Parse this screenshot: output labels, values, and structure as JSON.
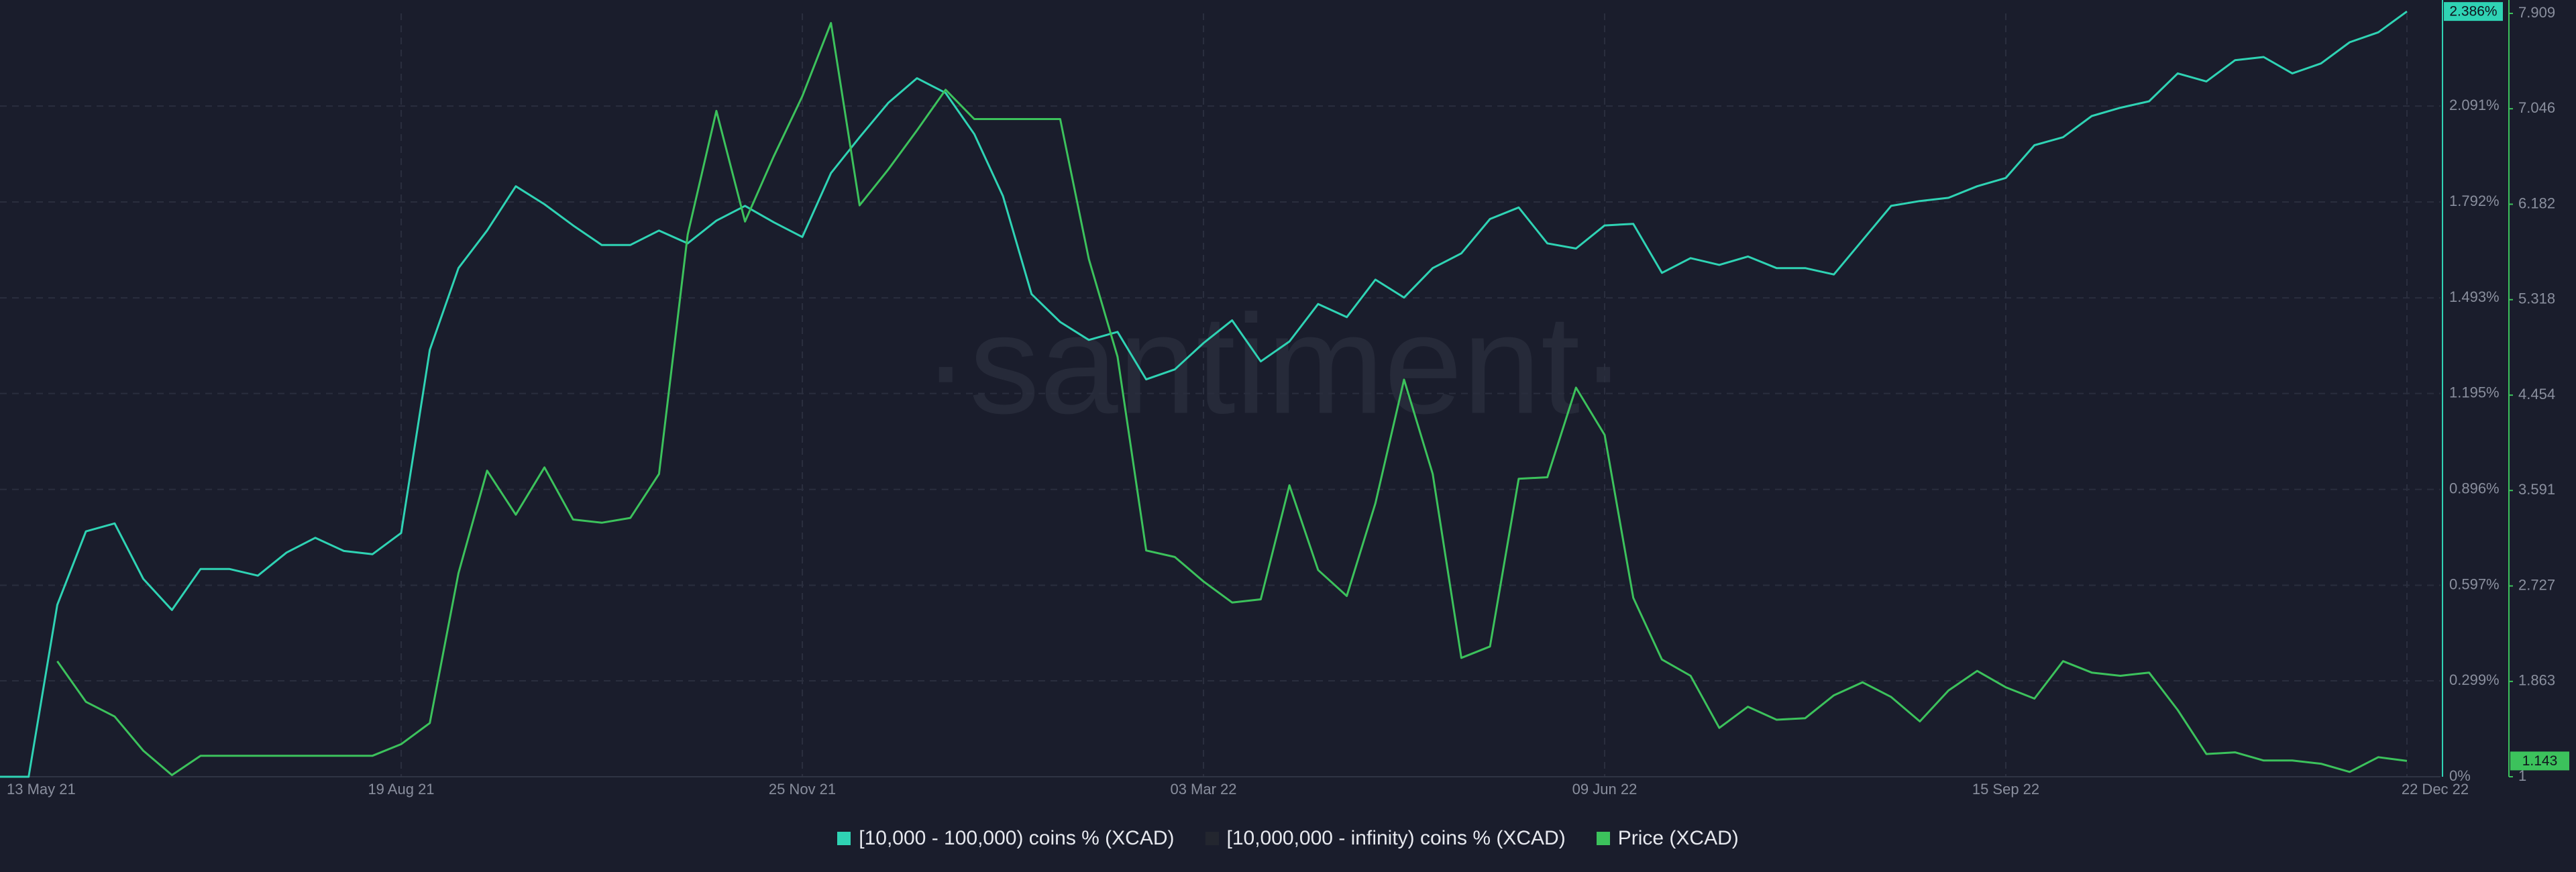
{
  "chart_data": {
    "type": "line",
    "watermark": "·santiment·",
    "categories": [
      "13 May 21",
      null,
      null,
      null,
      null,
      null,
      null,
      null,
      null,
      null,
      null,
      null,
      null,
      null,
      "19 Aug 21",
      null,
      null,
      null,
      null,
      null,
      null,
      null,
      null,
      null,
      null,
      null,
      null,
      null,
      "25 Nov 21",
      null,
      null,
      null,
      null,
      null,
      null,
      null,
      null,
      null,
      null,
      null,
      null,
      null,
      "03 Mar 22",
      null,
      null,
      null,
      null,
      null,
      null,
      null,
      null,
      null,
      null,
      null,
      null,
      null,
      "09 Jun 22",
      null,
      null,
      null,
      null,
      null,
      null,
      null,
      null,
      null,
      null,
      null,
      null,
      null,
      "15 Sep 22",
      null,
      null,
      null,
      null,
      null,
      null,
      null,
      null,
      null,
      null,
      null,
      null,
      null,
      "22 Dec 22"
    ],
    "series": [
      {
        "name": "[10,000 - 100,000) coins % (XCAD)",
        "color": "#2fd3b4",
        "axis": "y",
        "values": [
          0,
          0,
          0.536,
          0.765,
          0.79,
          0.617,
          0.52,
          0.648,
          0.648,
          0.627,
          0.699,
          0.745,
          0.704,
          0.694,
          0.76,
          1.331,
          1.586,
          1.703,
          1.841,
          1.785,
          1.719,
          1.658,
          1.658,
          1.703,
          1.663,
          1.734,
          1.78,
          1.729,
          1.683,
          1.882,
          1.994,
          2.101,
          2.178,
          2.132,
          2.004,
          1.811,
          1.505,
          1.418,
          1.362,
          1.387,
          1.239,
          1.27,
          1.352,
          1.423,
          1.295,
          1.357,
          1.474,
          1.433,
          1.55,
          1.494,
          1.586,
          1.632,
          1.739,
          1.775,
          1.663,
          1.647,
          1.719,
          1.724,
          1.571,
          1.617,
          1.596,
          1.622,
          1.586,
          1.586,
          1.566,
          1.673,
          1.78,
          1.795,
          1.805,
          1.841,
          1.867,
          1.969,
          1.994,
          2.06,
          2.086,
          2.106,
          2.193,
          2.168,
          2.234,
          2.244,
          2.193,
          2.224,
          2.29,
          2.321,
          2.386
        ]
      },
      {
        "name": "[10,000,000 - infinity) coins % (XCAD)",
        "color": "#23262f",
        "axis": "y",
        "values": [
          null,
          null,
          null,
          null,
          null,
          null,
          null,
          null,
          null,
          null,
          null,
          null,
          null,
          null,
          null,
          null,
          null,
          null,
          null,
          null,
          null,
          null,
          null,
          null,
          null,
          null,
          null,
          null,
          null,
          null,
          null,
          null,
          null,
          null,
          null,
          null,
          null,
          null,
          null,
          null,
          null,
          null,
          null,
          null,
          null,
          null,
          null,
          null,
          null,
          null,
          null,
          null,
          null,
          null,
          null,
          null,
          null,
          null,
          null,
          null,
          null,
          null,
          null,
          null,
          null,
          null,
          null,
          null,
          null,
          null,
          null,
          null,
          null,
          null,
          null,
          null,
          null,
          null,
          null,
          null,
          null,
          null,
          null,
          null,
          null
        ]
      },
      {
        "name": "Price (XCAD)",
        "color": "#3cc25c",
        "axis": "y2",
        "values": [
          null,
          null,
          2.046,
          1.678,
          1.545,
          1.236,
          1.015,
          1.19,
          1.19,
          1.19,
          1.19,
          1.19,
          1.19,
          1.19,
          1.295,
          1.486,
          2.842,
          3.77,
          3.372,
          3.8,
          3.328,
          3.299,
          3.343,
          3.741,
          5.907,
          7.027,
          6.025,
          6.614,
          7.159,
          7.822,
          6.172,
          6.496,
          6.85,
          7.218,
          6.953,
          6.953,
          6.953,
          6.953,
          5.686,
          4.802,
          3.048,
          2.989,
          2.768,
          2.577,
          2.606,
          3.638,
          2.871,
          2.636,
          3.475,
          4.595,
          3.741,
          2.076,
          2.179,
          3.697,
          3.711,
          4.522,
          4.094,
          2.62,
          2.061,
          1.914,
          1.442,
          1.634,
          1.516,
          1.53,
          1.737,
          1.855,
          1.722,
          1.501,
          1.781,
          1.958,
          1.81,
          1.707,
          2.046,
          1.943,
          1.914,
          1.943,
          1.604,
          1.206,
          1.221,
          1.147,
          1.147,
          1.118,
          1.044,
          1.177,
          1.143
        ]
      }
    ],
    "ylim": [
      0,
      2.38
    ],
    "yticks": [
      {
        "value": 0,
        "label": "0%"
      },
      {
        "value": 0.299,
        "label": "0.299%"
      },
      {
        "value": 0.597,
        "label": "0.597%"
      },
      {
        "value": 0.896,
        "label": "0.896%"
      },
      {
        "value": 1.195,
        "label": "1.195%"
      },
      {
        "value": 1.493,
        "label": "1.493%"
      },
      {
        "value": 1.792,
        "label": "1.792%"
      },
      {
        "value": 2.091,
        "label": "2.091%"
      }
    ],
    "y2lim": [
      1,
      7.909
    ],
    "y2ticks": [
      1,
      1.863,
      2.727,
      3.591,
      4.454,
      5.318,
      6.182,
      7.046,
      7.909
    ],
    "badges": [
      {
        "value": 2.386,
        "label": "2.386%",
        "axis": "y",
        "series": 0
      },
      {
        "value": 1.143,
        "label": "1.143",
        "axis": "y2",
        "series": 2
      }
    ],
    "grid": true
  }
}
